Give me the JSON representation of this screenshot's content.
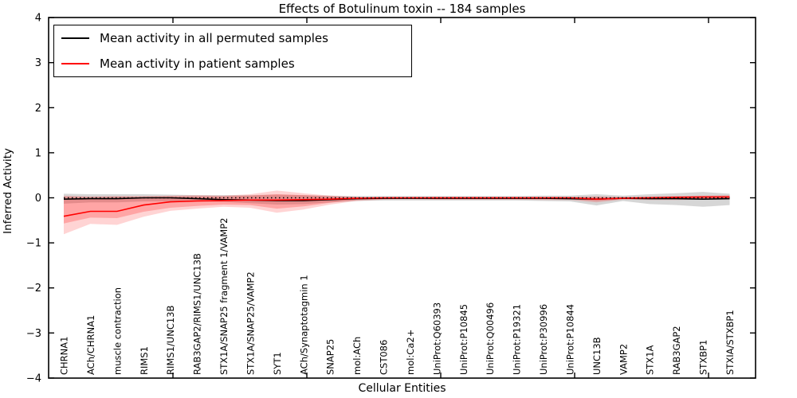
{
  "title": "Effects of Botulinum toxin -- 184 samples",
  "legend": {
    "items": [
      {
        "label": "Mean activity in all permuted samples",
        "color": "#000000"
      },
      {
        "label": "Mean activity in patient samples",
        "color": "#ff0000"
      }
    ]
  },
  "chart_data": {
    "type": "line",
    "title": "Effects of Botulinum toxin -- 184 samples",
    "xlabel": "Cellular Entities",
    "ylabel": "Inferred Activity",
    "ylim": [
      -4,
      4
    ],
    "yticks": [
      -4,
      -3,
      -2,
      -1,
      0,
      1,
      2,
      3,
      4
    ],
    "grid": false,
    "legend_position": "upper left",
    "categories": [
      "CHRNA1",
      "ACh/CHRNA1",
      "muscle contraction",
      "RIMS1",
      "RIMS1/UNC13B",
      "RAB3GAP2/RIMS1/UNC13B",
      "STX1A/SNAP25 fragment 1/VAMP2",
      "STX1A/SNAP25/VAMP2",
      "SYT1",
      "ACh/Synaptotagmin 1",
      "SNAP25",
      "mol:ACh",
      "CST086",
      "mol:Ca2+",
      "UniProt:Q60393",
      "UniProt:P10845",
      "UniProt:Q00496",
      "UniProt:P19321",
      "UniProt:P30996",
      "UniProt:P10844",
      "UNC13B",
      "VAMP2",
      "STX1A",
      "RAB3GAP2",
      "STXBP1",
      "STXIA/STXBP1"
    ],
    "series": [
      {
        "name": "Mean activity in all permuted samples",
        "color": "#000000",
        "values": [
          -0.03,
          -0.02,
          -0.02,
          0.0,
          0.0,
          -0.02,
          -0.04,
          -0.05,
          -0.06,
          -0.06,
          -0.04,
          -0.02,
          -0.01,
          -0.01,
          -0.01,
          -0.01,
          -0.01,
          -0.01,
          -0.01,
          -0.02,
          -0.03,
          -0.01,
          -0.02,
          -0.02,
          -0.03,
          -0.02
        ]
      },
      {
        "name": "Mean activity in patient samples",
        "color": "#ff0000",
        "values": [
          -0.41,
          -0.3,
          -0.3,
          -0.16,
          -0.09,
          -0.07,
          -0.06,
          -0.05,
          -0.05,
          -0.04,
          -0.03,
          -0.01,
          0.0,
          0.0,
          0.0,
          0.0,
          0.0,
          0.0,
          0.0,
          0.0,
          -0.03,
          -0.01,
          0.0,
          0.01,
          0.02,
          0.02
        ]
      }
    ],
    "bands": [
      {
        "name": "permuted-samples-band",
        "color": "#000000",
        "opacity": 0.16,
        "upper": [
          0.09,
          0.08,
          0.08,
          0.08,
          0.07,
          0.06,
          0.06,
          0.06,
          0.07,
          0.06,
          0.05,
          0.04,
          0.04,
          0.04,
          0.04,
          0.04,
          0.04,
          0.04,
          0.05,
          0.05,
          0.08,
          0.05,
          0.08,
          0.1,
          0.13,
          0.09
        ],
        "lower": [
          -0.13,
          -0.1,
          -0.1,
          -0.08,
          -0.08,
          -0.08,
          -0.09,
          -0.12,
          -0.15,
          -0.14,
          -0.1,
          -0.07,
          -0.06,
          -0.06,
          -0.06,
          -0.06,
          -0.06,
          -0.06,
          -0.07,
          -0.08,
          -0.17,
          -0.07,
          -0.14,
          -0.16,
          -0.2,
          -0.16
        ]
      },
      {
        "name": "patient-samples-band-outer",
        "color": "#ff0000",
        "opacity": 0.17,
        "upper": [
          0.05,
          0.03,
          0.04,
          0.04,
          0.05,
          0.06,
          0.05,
          0.08,
          0.16,
          0.1,
          0.05,
          0.02,
          0.01,
          0.01,
          0.02,
          0.02,
          0.02,
          0.02,
          0.02,
          0.02,
          0.03,
          0.02,
          0.03,
          0.04,
          0.05,
          0.06
        ],
        "lower": [
          -0.81,
          -0.58,
          -0.6,
          -0.42,
          -0.29,
          -0.24,
          -0.2,
          -0.22,
          -0.33,
          -0.26,
          -0.15,
          -0.07,
          -0.04,
          -0.03,
          -0.04,
          -0.04,
          -0.04,
          -0.04,
          -0.05,
          -0.05,
          -0.1,
          -0.04,
          -0.05,
          -0.05,
          -0.04,
          -0.04
        ]
      },
      {
        "name": "patient-samples-band-inner",
        "color": "#ff0000",
        "opacity": 0.22,
        "upper": [
          0.02,
          0.01,
          0.02,
          0.02,
          0.03,
          0.03,
          0.03,
          0.05,
          0.08,
          0.06,
          0.03,
          0.01,
          0.01,
          0.01,
          0.01,
          0.01,
          0.01,
          0.01,
          0.01,
          0.01,
          0.02,
          0.01,
          0.02,
          0.03,
          0.03,
          0.04
        ],
        "lower": [
          -0.57,
          -0.44,
          -0.45,
          -0.31,
          -0.22,
          -0.18,
          -0.15,
          -0.16,
          -0.24,
          -0.19,
          -0.11,
          -0.05,
          -0.03,
          -0.02,
          -0.03,
          -0.03,
          -0.03,
          -0.03,
          -0.03,
          -0.03,
          -0.07,
          -0.03,
          -0.03,
          -0.03,
          -0.03,
          -0.03
        ]
      }
    ],
    "zero_line": {
      "y": 0,
      "style": "dotted",
      "color": "#000000"
    }
  }
}
